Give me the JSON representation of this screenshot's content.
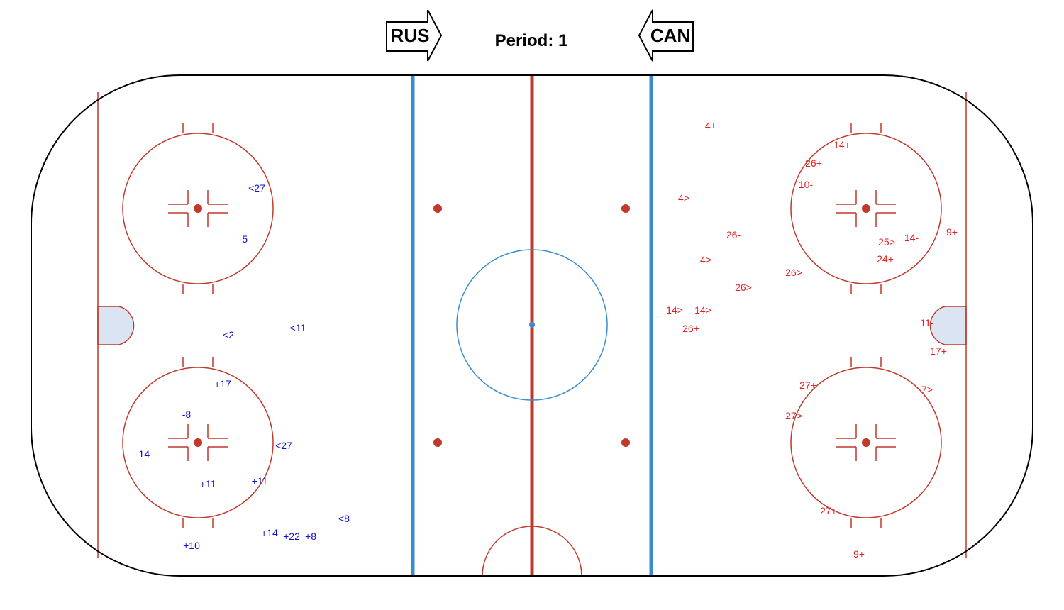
{
  "header": {
    "period": "Period: 1",
    "left_team": "RUS",
    "right_team": "CAN"
  },
  "colors": {
    "board": "#000000",
    "goal_line": "#c0392b",
    "red_line": "#c0392b",
    "blue_line": "#3a8ccc",
    "faceoff": "#c0392b",
    "center_circle": "#3a8ccc",
    "crease_fill": "#dbe4f3",
    "rus_events": "#1010d0",
    "can_events": "#e02020"
  },
  "events": {
    "rus": [
      "<27",
      "-5",
      "<2",
      "<11",
      "+17",
      "-8",
      "-14",
      "<27",
      "+11",
      "+11",
      "<8",
      "+14",
      "+22",
      "+8",
      "+10"
    ],
    "can": [
      "4+",
      "14+",
      "26+",
      "10-",
      "4>",
      "26-",
      "9+",
      "14-",
      "25>",
      "24+",
      "4>",
      "26>",
      "26>",
      "14>",
      "14>",
      "26+",
      "11-",
      "17+",
      "27+",
      "7>",
      "27>",
      "27+",
      "9+"
    ]
  }
}
